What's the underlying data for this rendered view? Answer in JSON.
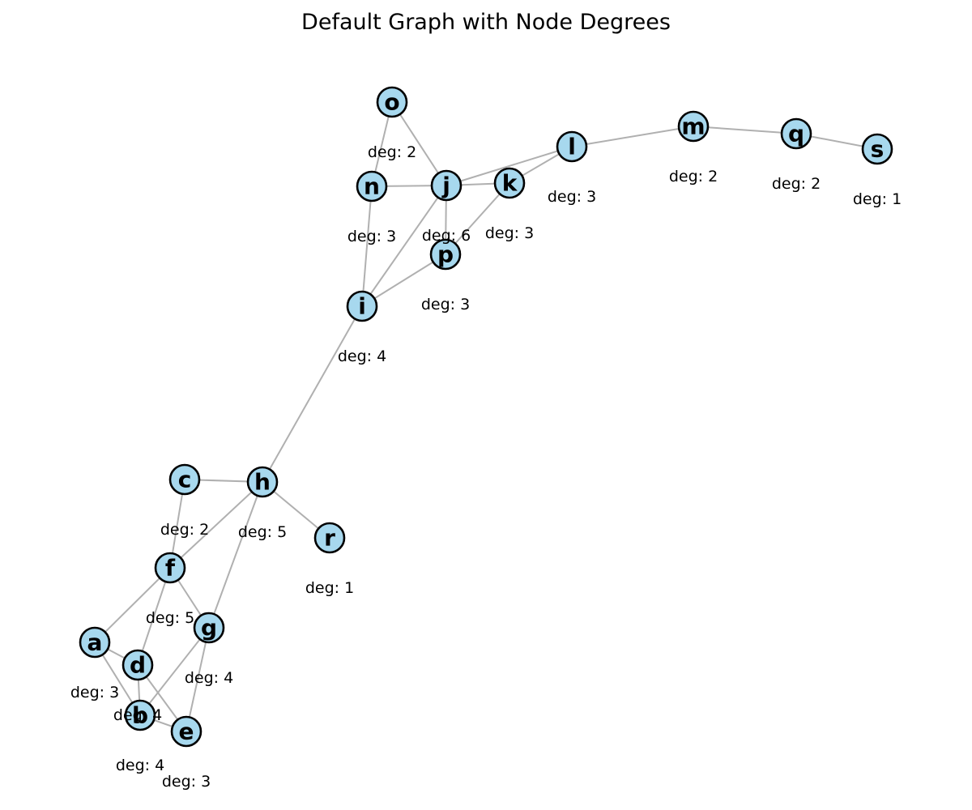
{
  "title": "Default Graph with Node Degrees",
  "colors": {
    "node_fill": "#a7d8ee",
    "node_stroke": "#000000",
    "edge": "#b0b0b0",
    "text": "#000000"
  },
  "nodes": [
    {
      "id": "a",
      "degree_label": "deg: 3"
    },
    {
      "id": "b",
      "degree_label": "deg: 4"
    },
    {
      "id": "c",
      "degree_label": "deg: 2"
    },
    {
      "id": "d",
      "degree_label": "deg: 4"
    },
    {
      "id": "e",
      "degree_label": "deg: 3"
    },
    {
      "id": "f",
      "degree_label": "deg: 5"
    },
    {
      "id": "g",
      "degree_label": "deg: 4"
    },
    {
      "id": "h",
      "degree_label": "deg: 5"
    },
    {
      "id": "i",
      "degree_label": "deg: 4"
    },
    {
      "id": "j",
      "degree_label": "deg: 6"
    },
    {
      "id": "k",
      "degree_label": "deg: 3"
    },
    {
      "id": "l",
      "degree_label": "deg: 3"
    },
    {
      "id": "m",
      "degree_label": "deg: 2"
    },
    {
      "id": "n",
      "degree_label": "deg: 3"
    },
    {
      "id": "o",
      "degree_label": "deg: 2"
    },
    {
      "id": "p",
      "degree_label": "deg: 3"
    },
    {
      "id": "q",
      "degree_label": "deg: 2"
    },
    {
      "id": "r",
      "degree_label": "deg: 1"
    },
    {
      "id": "s",
      "degree_label": "deg: 1"
    }
  ],
  "edges": [
    [
      "a",
      "f"
    ],
    [
      "a",
      "d"
    ],
    [
      "a",
      "b"
    ],
    [
      "b",
      "d"
    ],
    [
      "b",
      "e"
    ],
    [
      "b",
      "g"
    ],
    [
      "c",
      "h"
    ],
    [
      "c",
      "f"
    ],
    [
      "d",
      "f"
    ],
    [
      "d",
      "e"
    ],
    [
      "e",
      "g"
    ],
    [
      "f",
      "h"
    ],
    [
      "f",
      "g"
    ],
    [
      "g",
      "h"
    ],
    [
      "h",
      "r"
    ],
    [
      "h",
      "i"
    ],
    [
      "i",
      "n"
    ],
    [
      "i",
      "j"
    ],
    [
      "i",
      "p"
    ],
    [
      "j",
      "o"
    ],
    [
      "j",
      "n"
    ],
    [
      "j",
      "k"
    ],
    [
      "j",
      "l"
    ],
    [
      "j",
      "p"
    ],
    [
      "k",
      "l"
    ],
    [
      "k",
      "p"
    ],
    [
      "l",
      "m"
    ],
    [
      "m",
      "q"
    ],
    [
      "n",
      "o"
    ],
    [
      "q",
      "s"
    ]
  ]
}
